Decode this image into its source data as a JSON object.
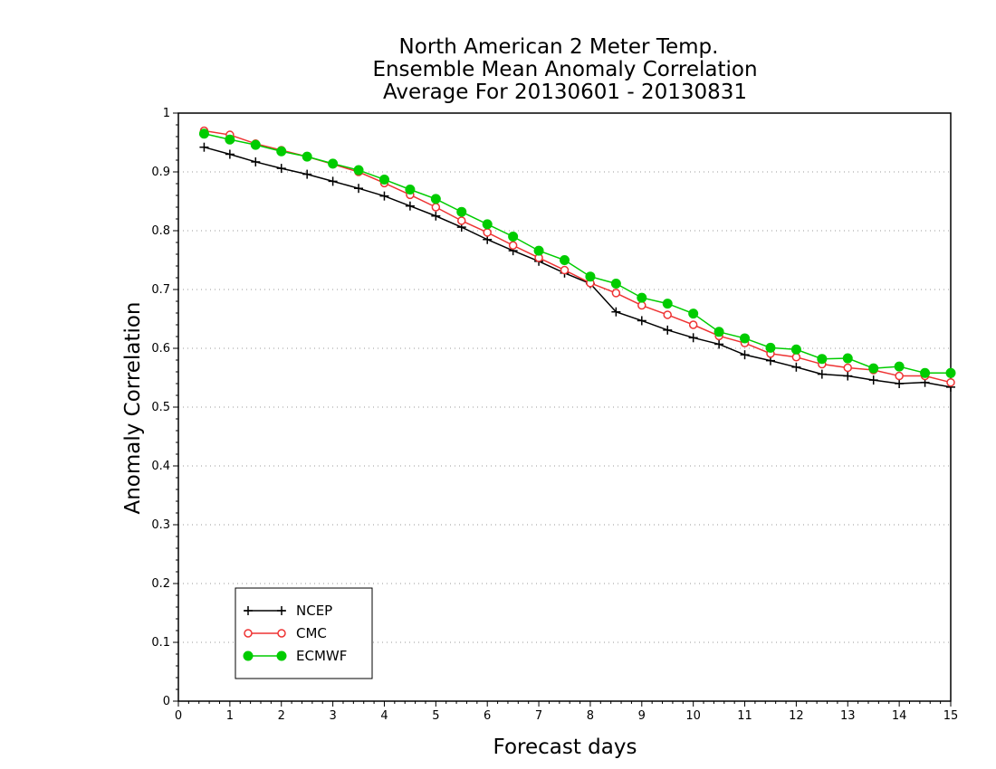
{
  "chart_data": {
    "type": "line",
    "title": [
      "North American 2 Meter Temp.",
      "Ensemble Mean Anomaly Correlation",
      "Average For 20130601 - 20130831"
    ],
    "xlabel": "Forecast days",
    "ylabel": "Anomaly Correlation",
    "xlim": [
      0,
      15
    ],
    "ylim": [
      0,
      1
    ],
    "xticks": [
      "0",
      "1",
      "2",
      "3",
      "4",
      "5",
      "6",
      "7",
      "8",
      "9",
      "10",
      "11",
      "12",
      "13",
      "14",
      "15"
    ],
    "yticks": [
      "0",
      "0.1",
      "0.2",
      "0.3",
      "0.4",
      "0.5",
      "0.6",
      "0.7",
      "0.8",
      "0.9",
      "1"
    ],
    "grid": "horizontal dotted",
    "legend_position": "bottom-left",
    "x": [
      0.5,
      1,
      1.5,
      2,
      2.5,
      3,
      3.5,
      4,
      4.5,
      5,
      5.5,
      6,
      6.5,
      7,
      7.5,
      8,
      8.5,
      9,
      9.5,
      10,
      10.5,
      11,
      11.5,
      12,
      12.5,
      13,
      13.5,
      14,
      14.5,
      15
    ],
    "series": [
      {
        "name": "NCEP",
        "color": "#000000",
        "marker": "plus",
        "values": [
          0.942,
          0.93,
          0.917,
          0.906,
          0.896,
          0.884,
          0.872,
          0.859,
          0.842,
          0.825,
          0.806,
          0.785,
          0.766,
          0.748,
          0.728,
          0.71,
          0.662,
          0.647,
          0.631,
          0.618,
          0.607,
          0.589,
          0.579,
          0.568,
          0.556,
          0.553,
          0.546,
          0.54,
          0.542,
          0.534
        ]
      },
      {
        "name": "CMC",
        "color": "#ee3333",
        "marker": "open-circle",
        "values": [
          0.97,
          0.963,
          0.948,
          0.937,
          0.926,
          0.913,
          0.9,
          0.881,
          0.861,
          0.84,
          0.817,
          0.797,
          0.775,
          0.754,
          0.733,
          0.711,
          0.694,
          0.673,
          0.657,
          0.64,
          0.621,
          0.609,
          0.591,
          0.585,
          0.573,
          0.567,
          0.563,
          0.553,
          0.553,
          0.542
        ]
      },
      {
        "name": "ECMWF",
        "color": "#00cc00",
        "marker": "filled-circle",
        "values": [
          0.965,
          0.955,
          0.946,
          0.935,
          0.926,
          0.914,
          0.903,
          0.887,
          0.87,
          0.854,
          0.832,
          0.811,
          0.79,
          0.766,
          0.75,
          0.722,
          0.71,
          0.686,
          0.676,
          0.659,
          0.628,
          0.617,
          0.601,
          0.598,
          0.582,
          0.583,
          0.566,
          0.569,
          0.558,
          0.558
        ]
      }
    ]
  }
}
